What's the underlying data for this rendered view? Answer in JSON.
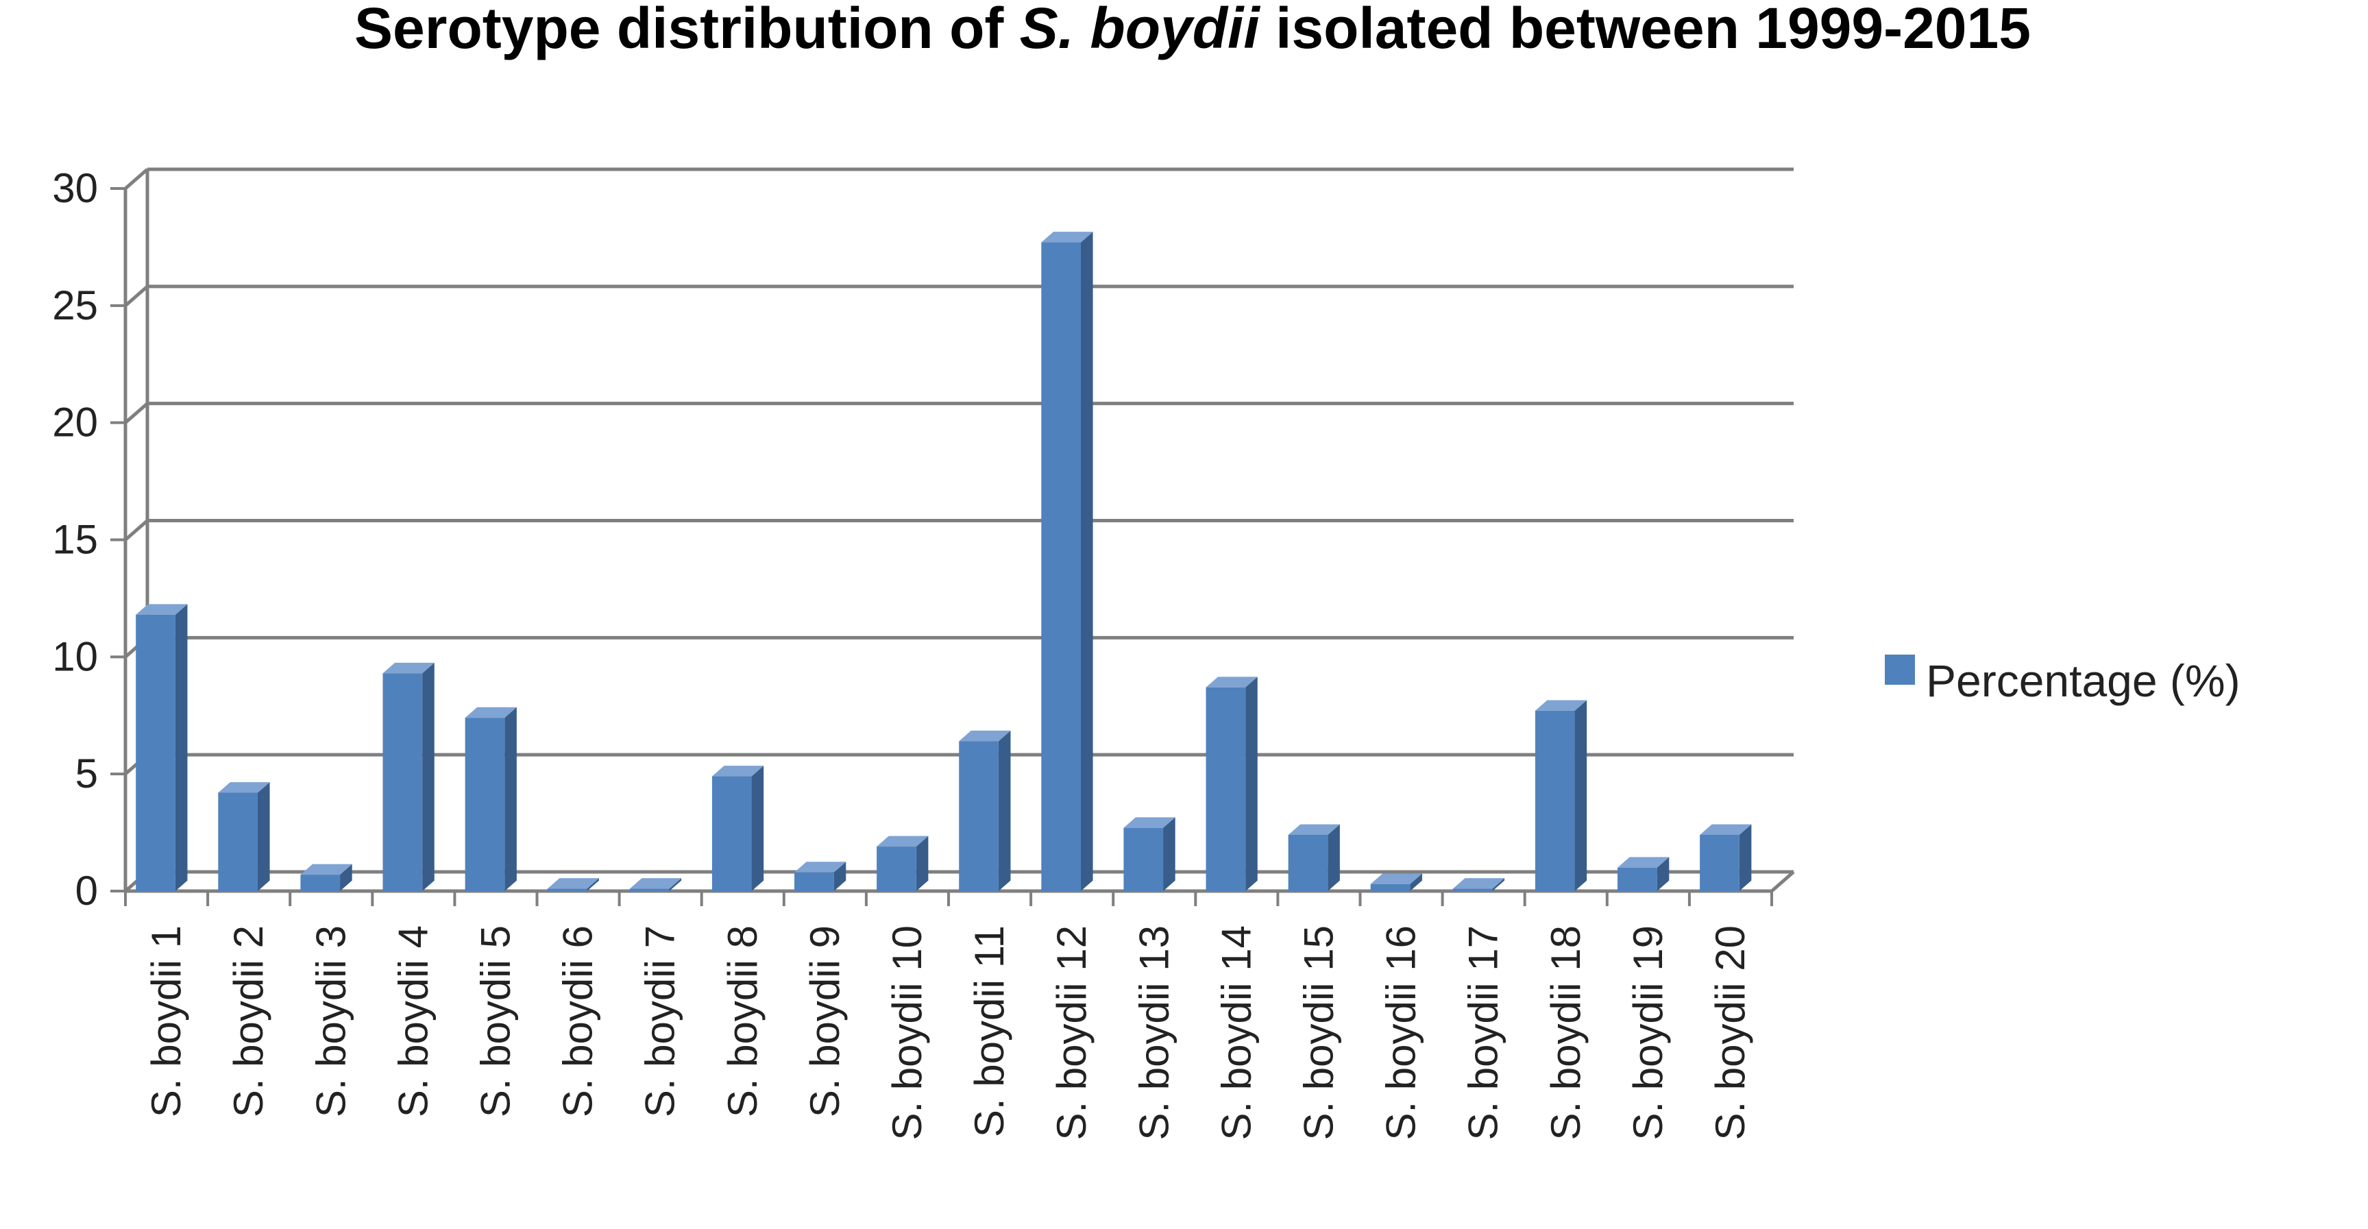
{
  "chart_data": {
    "type": "bar",
    "title": {
      "prefix": "Serotype distribution of ",
      "italic": "S. boydii",
      "suffix": " isolated between 1999-2015"
    },
    "categories": [
      "S. boydii 1",
      "S. boydii 2",
      "S. boydii 3",
      "S. boydii 4",
      "S. boydii 5",
      "S. boydii 6",
      "S. boydii 7",
      "S. boydii 8",
      "S. boydii 9",
      "S. boydii 10",
      "S. boydii 11",
      "S. boydii 12",
      "S. boydii 13",
      "S. boydii 14",
      "S. boydii 15",
      "S. boydii 16",
      "S. boydii 17",
      "S. boydii 18",
      "S. boydii 19",
      "S. boydii 20"
    ],
    "series": [
      {
        "name": "Percentage (%)",
        "values": [
          11.8,
          4.2,
          0.7,
          9.3,
          7.4,
          0.1,
          0.1,
          4.9,
          0.8,
          1.9,
          6.4,
          27.7,
          2.7,
          8.7,
          2.4,
          0.3,
          0.1,
          7.7,
          1.0,
          2.4
        ]
      }
    ],
    "yticks": [
      "0",
      "5",
      "10",
      "15",
      "20",
      "25",
      "30"
    ],
    "ylim": [
      0,
      30
    ],
    "xlabel": "",
    "ylabel": "",
    "grid": true,
    "legend_position": "right",
    "bar_color": "#4f81bd",
    "bar_side_color": "#385d8a",
    "bar_top_color": "#7fa3d3",
    "grid_color": "#7f7f7f"
  }
}
